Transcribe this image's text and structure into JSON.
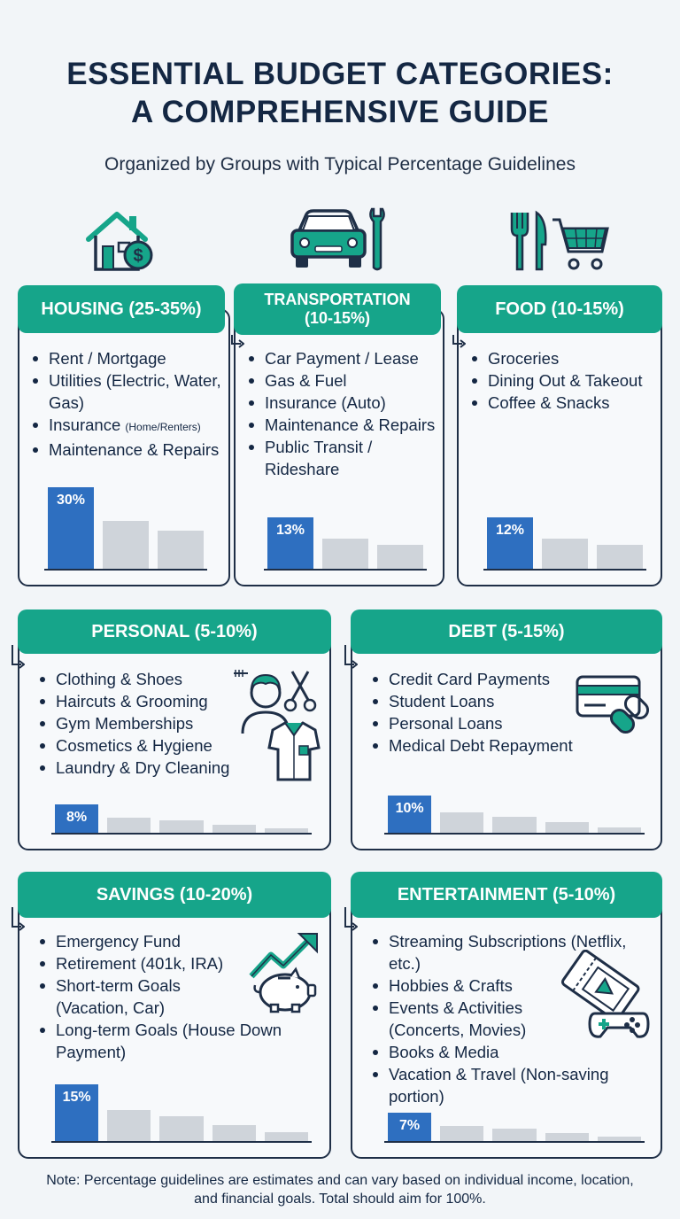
{
  "header": {
    "title_line1": "ESSENTIAL BUDGET CATEGORIES:",
    "title_line2": "A COMPREHENSIVE GUIDE",
    "subtitle": "Organized by Groups with Typical Percentage Guidelines"
  },
  "icons": {
    "housing": "house-dollar-icon",
    "transportation": "car-wrench-icon",
    "food": "fork-knife-cart-icon",
    "personal": "person-shirt-scissors-icon",
    "debt": "credit-card-chain-icon",
    "savings": "piggy-bank-growth-icon",
    "entertainment": "ticket-gamepad-icon"
  },
  "colors": {
    "accent": "#16a58a",
    "primary_bar": "#2e6fc0",
    "reference_bar": "#cfd4da",
    "text": "#142743"
  },
  "categories": {
    "housing": {
      "title": "HOUSING (25-35%)",
      "items": [
        "Rent / Mortgage",
        "Utilities (Electric, Water, Gas)",
        "Insurance",
        "Maintenance & Repairs"
      ],
      "insurance_note": "(Home/Renters)",
      "value_label": "30%",
      "value": 30
    },
    "transportation": {
      "title": "TRANSPORTATION (10-15%)",
      "items": [
        "Car Payment / Lease",
        "Gas & Fuel",
        "Insurance (Auto)",
        "Maintenance & Repairs",
        "Public Transit / Rideshare"
      ],
      "value_label": "13%",
      "value": 13
    },
    "food": {
      "title": "FOOD (10-15%)",
      "items": [
        "Groceries",
        "Dining Out & Takeout",
        "Coffee & Snacks"
      ],
      "value_label": "12%",
      "value": 12
    },
    "personal": {
      "title": "PERSONAL (5-10%)",
      "items": [
        "Clothing & Shoes",
        "Haircuts & Grooming",
        "Gym Memberships",
        "Cosmetics & Hygiene",
        "Laundry & Dry Cleaning"
      ],
      "value_label": "8%",
      "value": 8
    },
    "debt": {
      "title": "DEBT (5-15%)",
      "items": [
        "Credit Card Payments",
        "Student Loans",
        "Personal Loans",
        "Medical Debt Repayment"
      ],
      "value_label": "10%",
      "value": 10
    },
    "savings": {
      "title": "SAVINGS (10-20%)",
      "items": [
        "Emergency Fund",
        "Retirement (401k, IRA)",
        "Short-term Goals (Vacation, Car)",
        "Long-term Goals (House Down Payment)"
      ],
      "value_label": "15%",
      "value": 15
    },
    "entertainment": {
      "title": "ENTERTAINMENT (5-10%)",
      "items": [
        "Streaming Subscriptions (Netflix, etc.)",
        "Hobbies & Crafts",
        "Events & Activities (Concerts, Movies)",
        "Books & Media",
        "Vacation & Travel (Non-saving portion)"
      ],
      "value_label": "7%",
      "value": 7
    }
  },
  "footer": {
    "note": "Note: Percentage guidelines are estimates and can vary based on individual income, location, and financial goals. Total should aim for 100%."
  }
}
